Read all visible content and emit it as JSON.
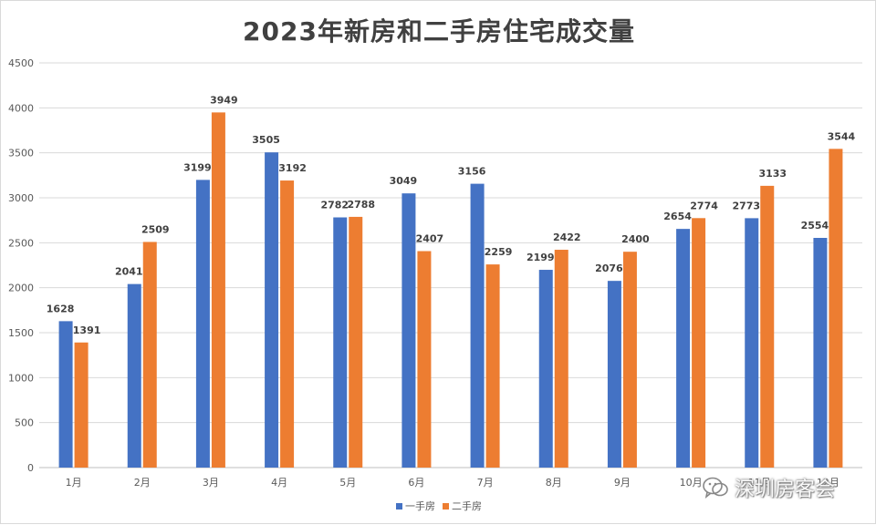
{
  "chart_data": {
    "type": "bar",
    "title": "2023年新房和二手房住宅成交量",
    "categories": [
      "1月",
      "2月",
      "3月",
      "4月",
      "5月",
      "6月",
      "7月",
      "8月",
      "9月",
      "10月",
      "11月",
      "12月"
    ],
    "series": [
      {
        "name": "一手房",
        "color": "#4472C4",
        "values": [
          1628,
          2041,
          3199,
          3505,
          2782,
          3049,
          3156,
          2199,
          2076,
          2654,
          2773,
          2554
        ]
      },
      {
        "name": "二手房",
        "color": "#ED7D31",
        "values": [
          1391,
          2509,
          3949,
          3192,
          2788,
          2407,
          2259,
          2422,
          2400,
          2774,
          3133,
          3544
        ]
      }
    ],
    "ylim": [
      0,
      4500
    ],
    "yticks": [
      0,
      500,
      1000,
      1500,
      2000,
      2500,
      3000,
      3500,
      4000,
      4500
    ],
    "grid": true,
    "legend_position": "bottom"
  },
  "watermark": {
    "text": "深圳房客会",
    "icon": "wechat-icon"
  }
}
